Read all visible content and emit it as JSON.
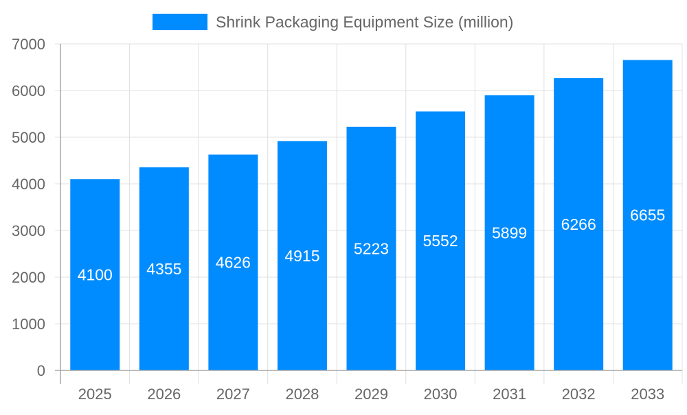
{
  "chart_data": {
    "type": "bar",
    "title": "",
    "xlabel": "",
    "ylabel": "",
    "categories": [
      "2025",
      "2026",
      "2027",
      "2028",
      "2029",
      "2030",
      "2031",
      "2032",
      "2033"
    ],
    "series": [
      {
        "name": "Shrink Packaging Equipment Size (million)",
        "values": [
          4100,
          4355,
          4626,
          4915,
          5223,
          5552,
          5899,
          6266,
          6655
        ],
        "color": "#008cff"
      }
    ],
    "ylim": [
      0,
      7000
    ],
    "yticks": [
      0,
      1000,
      2000,
      3000,
      4000,
      5000,
      6000,
      7000
    ],
    "grid": true,
    "legend": "top-center",
    "data_labels": "inside-center"
  },
  "colors": {
    "grid": "#e0e0e0",
    "axis": "#a8a8a8",
    "tick_text": "#666666",
    "label_text": "#ffffff"
  }
}
